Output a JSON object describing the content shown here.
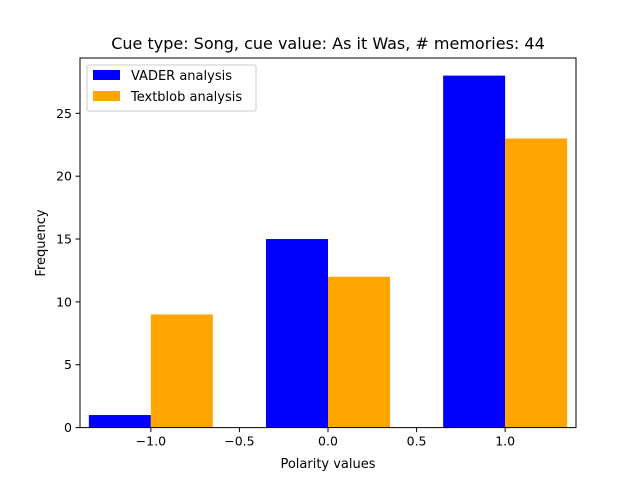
{
  "chart_data": {
    "type": "bar",
    "title": "Cue type: Song, cue value: As it Was, # memories: 44",
    "xlabel": "Polarity values",
    "ylabel": "Frequency",
    "categories": [
      -1.0,
      0.0,
      1.0
    ],
    "series": [
      {
        "name": "VADER analysis",
        "color": "#0000ff",
        "values": [
          1,
          15,
          28
        ]
      },
      {
        "name": "Textblob analysis",
        "color": "#ffa500",
        "values": [
          9,
          12,
          23
        ]
      }
    ],
    "xlim": [
      -1.4,
      1.4
    ],
    "ylim": [
      0,
      29.4
    ],
    "xticks": [
      -1.0,
      -0.5,
      0.0,
      0.5,
      1.0
    ],
    "xtick_labels": [
      "−1.0",
      "−0.5",
      "0.0",
      "0.5",
      "1.0"
    ],
    "yticks": [
      0,
      5,
      10,
      15,
      20,
      25
    ],
    "ytick_labels": [
      "0",
      "5",
      "10",
      "15",
      "20",
      "25"
    ],
    "grid": false,
    "legend_position": "top-left"
  }
}
